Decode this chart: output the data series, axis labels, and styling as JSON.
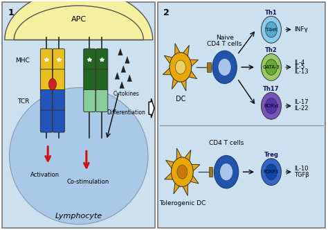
{
  "panel1": {
    "label": "1",
    "bg_color": "#cce0f0",
    "apc_color": "#f5f0a0",
    "apc_label": "APC",
    "mhc_label": "MHC",
    "tcr_label": "TCR",
    "cytokines_label": "Cytokines",
    "differentiation_label": "Differentiation",
    "activation_label": "Activation",
    "costim_label": "Co-stimulation",
    "lymphocyte_label": "Lymphocyte",
    "lymph_color": "#aac8e8"
  },
  "panel2": {
    "label": "2",
    "bg_color": "#cce0f0",
    "dc_label": "DC",
    "naive_label": "Naive\nCD4 T cells",
    "tolerogenic_label": "Tolerogenic DC",
    "cd4_label": "CD4 T cells",
    "th1_label": "Th1",
    "th1_tf": "T-bet",
    "th1_outer": "#88ccee",
    "th1_inner": "#55aacc",
    "th1_cytokines": "INFγ",
    "th2_label": "Th2",
    "th2_tf": "GATA-3",
    "th2_outer": "#99cc66",
    "th2_inner": "#66aa33",
    "th2_cytokines": "IL-4\nIL-5\nIL-13",
    "th17_label": "Th17",
    "th17_tf": "RORγt",
    "th17_outer": "#7755bb",
    "th17_inner": "#5533aa",
    "th17_cytokines": "IL-17\nIL-22",
    "treg_label": "Treg",
    "treg_tf": "FOXP3",
    "treg_outer": "#3366cc",
    "treg_inner": "#1144aa",
    "treg_cytokines": "IL-10\nTGFβ"
  }
}
